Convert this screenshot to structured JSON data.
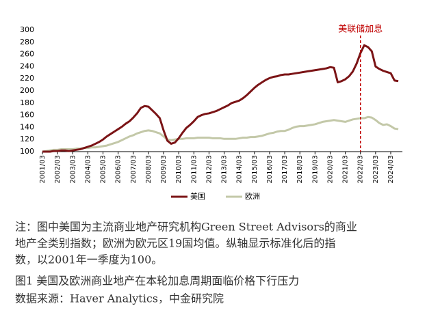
{
  "chart_data": {
    "type": "line",
    "categories": [
      "2001/03",
      null,
      null,
      null,
      "2002/03",
      null,
      null,
      null,
      "2003/03",
      null,
      null,
      null,
      "2004/03",
      null,
      null,
      null,
      "2005/03",
      null,
      null,
      null,
      "2006/03",
      null,
      null,
      null,
      "2007/03",
      null,
      null,
      null,
      "2008/03",
      null,
      null,
      null,
      "2009/03",
      null,
      null,
      null,
      "2010/03",
      null,
      null,
      null,
      "2011/03",
      null,
      null,
      null,
      "2012/03",
      null,
      null,
      null,
      "2013/03",
      null,
      null,
      null,
      "2014/03",
      null,
      null,
      null,
      "2015/03",
      null,
      null,
      null,
      "2016/03",
      null,
      null,
      null,
      "2017/03",
      null,
      null,
      null,
      "2018/03",
      null,
      null,
      null,
      "2019/03",
      null,
      null,
      null,
      "2020/03",
      null,
      null,
      null,
      "2021/03",
      null,
      null,
      null,
      "2022/03",
      null,
      null,
      null,
      "2023/03",
      null,
      null,
      null,
      "2024/03",
      null,
      null
    ],
    "series": [
      {
        "name": "美国",
        "color": "#7b1416",
        "values": [
          100,
          100,
          100,
          101,
          101,
          102,
          102,
          101,
          102,
          103,
          104,
          106,
          108,
          110,
          113,
          116,
          120,
          125,
          129,
          133,
          137,
          141,
          146,
          150,
          156,
          163,
          172,
          175,
          174,
          168,
          162,
          155,
          135,
          118,
          113,
          115,
          122,
          131,
          139,
          144,
          150,
          157,
          160,
          162,
          163,
          165,
          167,
          170,
          173,
          176,
          180,
          182,
          184,
          188,
          193,
          199,
          205,
          210,
          214,
          218,
          221,
          223,
          224,
          226,
          227,
          227,
          228,
          229,
          230,
          231,
          232,
          233,
          234,
          235,
          236,
          237,
          239,
          238,
          214,
          216,
          219,
          224,
          232,
          245,
          262,
          275,
          272,
          265,
          240,
          236,
          233,
          231,
          229,
          217,
          216
        ]
      },
      {
        "name": "欧洲",
        "color": "#c3c8a8",
        "values": [
          100,
          101,
          102,
          103,
          103,
          104,
          104,
          104,
          104,
          105,
          105,
          106,
          106,
          107,
          107,
          108,
          109,
          110,
          112,
          114,
          116,
          119,
          122,
          125,
          127,
          130,
          132,
          134,
          135,
          134,
          132,
          130,
          125,
          120,
          119,
          120,
          121,
          121,
          122,
          122,
          122,
          123,
          123,
          123,
          123,
          122,
          122,
          122,
          121,
          121,
          121,
          121,
          122,
          123,
          123,
          124,
          124,
          125,
          126,
          128,
          130,
          131,
          133,
          134,
          134,
          136,
          139,
          141,
          142,
          142,
          143,
          144,
          145,
          147,
          149,
          150,
          151,
          152,
          151,
          150,
          149,
          151,
          153,
          154,
          155,
          155,
          157,
          156,
          152,
          147,
          144,
          145,
          142,
          138,
          137
        ]
      }
    ],
    "ylim": [
      100,
      300
    ],
    "yticks": [
      100,
      120,
      140,
      160,
      180,
      200,
      220,
      240,
      260,
      280,
      300
    ],
    "annotation": {
      "text": "美联储加息",
      "x": "2022/03",
      "color": "#c00000"
    },
    "legend": "bottom"
  },
  "notes": [
    "注：图中美国为主流商业地产研究机构Green Street Advisors的商业",
    "地产全类别指数；欧洲为欧元区19国均值。纵轴显示标准化后的指",
    "数，以2001年一季度为100。"
  ],
  "caption": "图1  美国及欧洲商业地产在本轮加息周期面临价格下行压力",
  "source": "数据来源：Haver Analytics，中金研究院"
}
